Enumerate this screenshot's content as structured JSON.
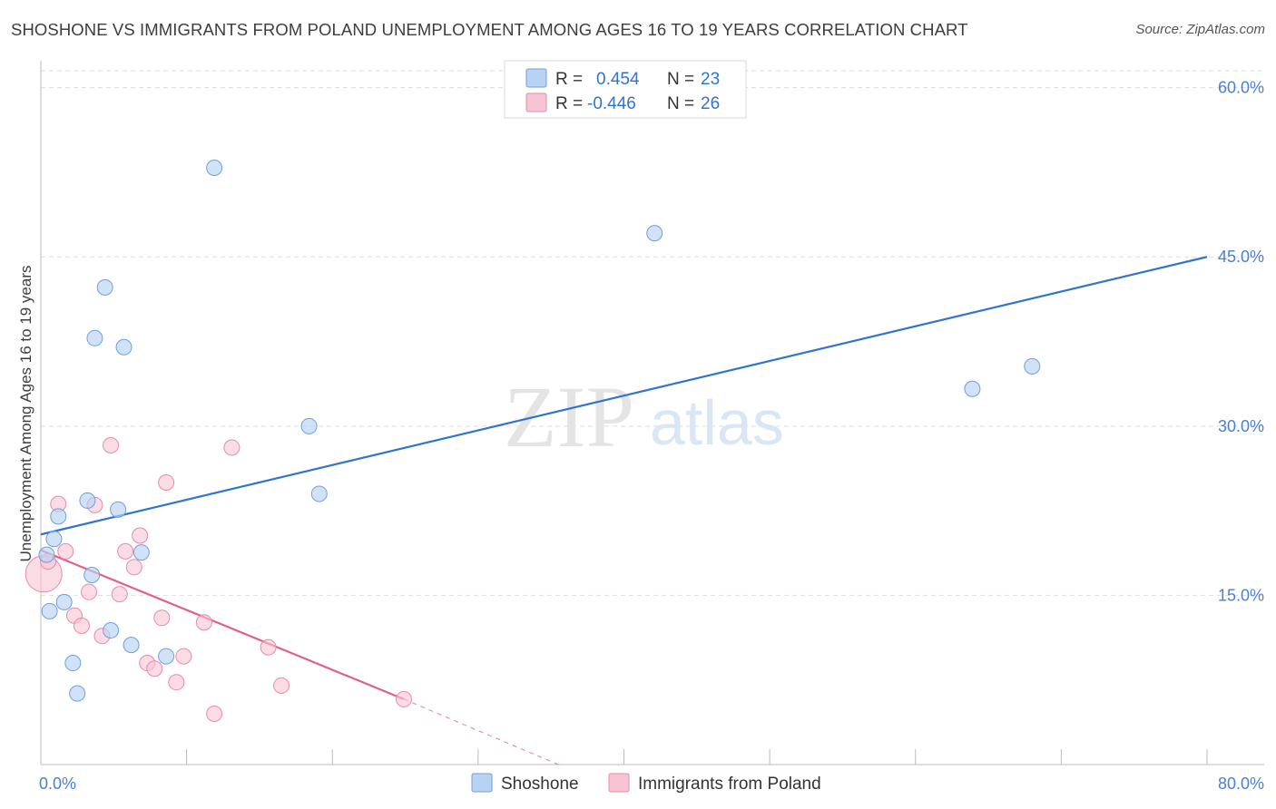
{
  "header": {
    "title": "SHOSHONE VS IMMIGRANTS FROM POLAND UNEMPLOYMENT AMONG AGES 16 TO 19 YEARS CORRELATION CHART",
    "source": "Source: ZipAtlas.com"
  },
  "watermark": {
    "zip": "ZIP",
    "atlas": "atlas"
  },
  "colors": {
    "blue_fill": "#b8d2f3",
    "blue_stroke": "#6f9fde",
    "blue_line": "#2f74d0",
    "pink_fill": "#f7c4d3",
    "pink_stroke": "#e98aa7",
    "pink_line": "#e0608c",
    "tick_label": "#4a7fd0",
    "grid": "#dddddd"
  },
  "legend": {
    "items": [
      {
        "r_label": "R =",
        "r_value": "0.454",
        "n_label": "N =",
        "n_value": "23",
        "color": "blue"
      },
      {
        "r_label": "R =",
        "r_value": "-0.446",
        "n_label": "N =",
        "n_value": "26",
        "color": "pink"
      }
    ]
  },
  "chart_data": {
    "type": "scatter",
    "title": "SHOSHONE VS IMMIGRANTS FROM POLAND UNEMPLOYMENT AMONG AGES 16 TO 19 YEARS CORRELATION CHART",
    "xlabel": "",
    "ylabel": "Unemployment Among Ages 16 to 19 years",
    "xlim": [
      0,
      80
    ],
    "ylim": [
      0,
      61.5
    ],
    "x_tick_labels": [
      "0.0%",
      "80.0%"
    ],
    "y_ticks": [
      15,
      30,
      45,
      60
    ],
    "y_tick_labels": [
      "15.0%",
      "30.0%",
      "45.0%",
      "60.0%"
    ],
    "grid": true,
    "legend_position": "bottom-center",
    "series": [
      {
        "name": "Shoshone",
        "color": "blue",
        "points": [
          [
            0.4,
            18.6
          ],
          [
            0.6,
            13.6
          ],
          [
            0.9,
            20.0
          ],
          [
            1.2,
            22.0
          ],
          [
            1.6,
            14.4
          ],
          [
            2.2,
            9.0
          ],
          [
            2.5,
            6.3
          ],
          [
            3.2,
            23.4
          ],
          [
            3.5,
            16.8
          ],
          [
            3.7,
            37.8
          ],
          [
            4.4,
            42.3
          ],
          [
            4.8,
            11.9
          ],
          [
            5.3,
            22.6
          ],
          [
            5.7,
            37.0
          ],
          [
            6.2,
            10.6
          ],
          [
            6.9,
            18.8
          ],
          [
            8.6,
            9.6
          ],
          [
            11.9,
            52.9
          ],
          [
            18.4,
            30.0
          ],
          [
            19.1,
            24.0
          ],
          [
            42.1,
            47.1
          ],
          [
            63.9,
            33.3
          ],
          [
            68.0,
            35.3
          ]
        ],
        "trend": {
          "x": [
            0,
            80
          ],
          "y": [
            20.4,
            45.0
          ]
        }
      },
      {
        "name": "Immigrants from Poland",
        "color": "pink",
        "points": [
          [
            0.2,
            16.9
          ],
          [
            0.5,
            18.0
          ],
          [
            1.2,
            23.1
          ],
          [
            1.7,
            18.9
          ],
          [
            2.3,
            13.2
          ],
          [
            2.8,
            12.3
          ],
          [
            3.3,
            15.3
          ],
          [
            3.7,
            23.0
          ],
          [
            4.2,
            11.4
          ],
          [
            4.8,
            28.3
          ],
          [
            5.4,
            15.1
          ],
          [
            5.8,
            18.9
          ],
          [
            6.4,
            17.5
          ],
          [
            6.8,
            20.3
          ],
          [
            7.3,
            9.0
          ],
          [
            7.8,
            8.5
          ],
          [
            8.3,
            13.0
          ],
          [
            8.6,
            25.0
          ],
          [
            9.3,
            7.3
          ],
          [
            9.8,
            9.6
          ],
          [
            11.2,
            12.6
          ],
          [
            11.9,
            4.5
          ],
          [
            13.1,
            28.1
          ],
          [
            15.6,
            10.4
          ],
          [
            16.5,
            7.0
          ],
          [
            24.9,
            5.8
          ]
        ],
        "trend": {
          "x": [
            0,
            24.9
          ],
          "y": [
            19.0,
            5.8
          ]
        },
        "trend_extension": {
          "x": [
            24.9,
            35.5
          ],
          "y": [
            5.8,
            0
          ]
        }
      }
    ]
  }
}
